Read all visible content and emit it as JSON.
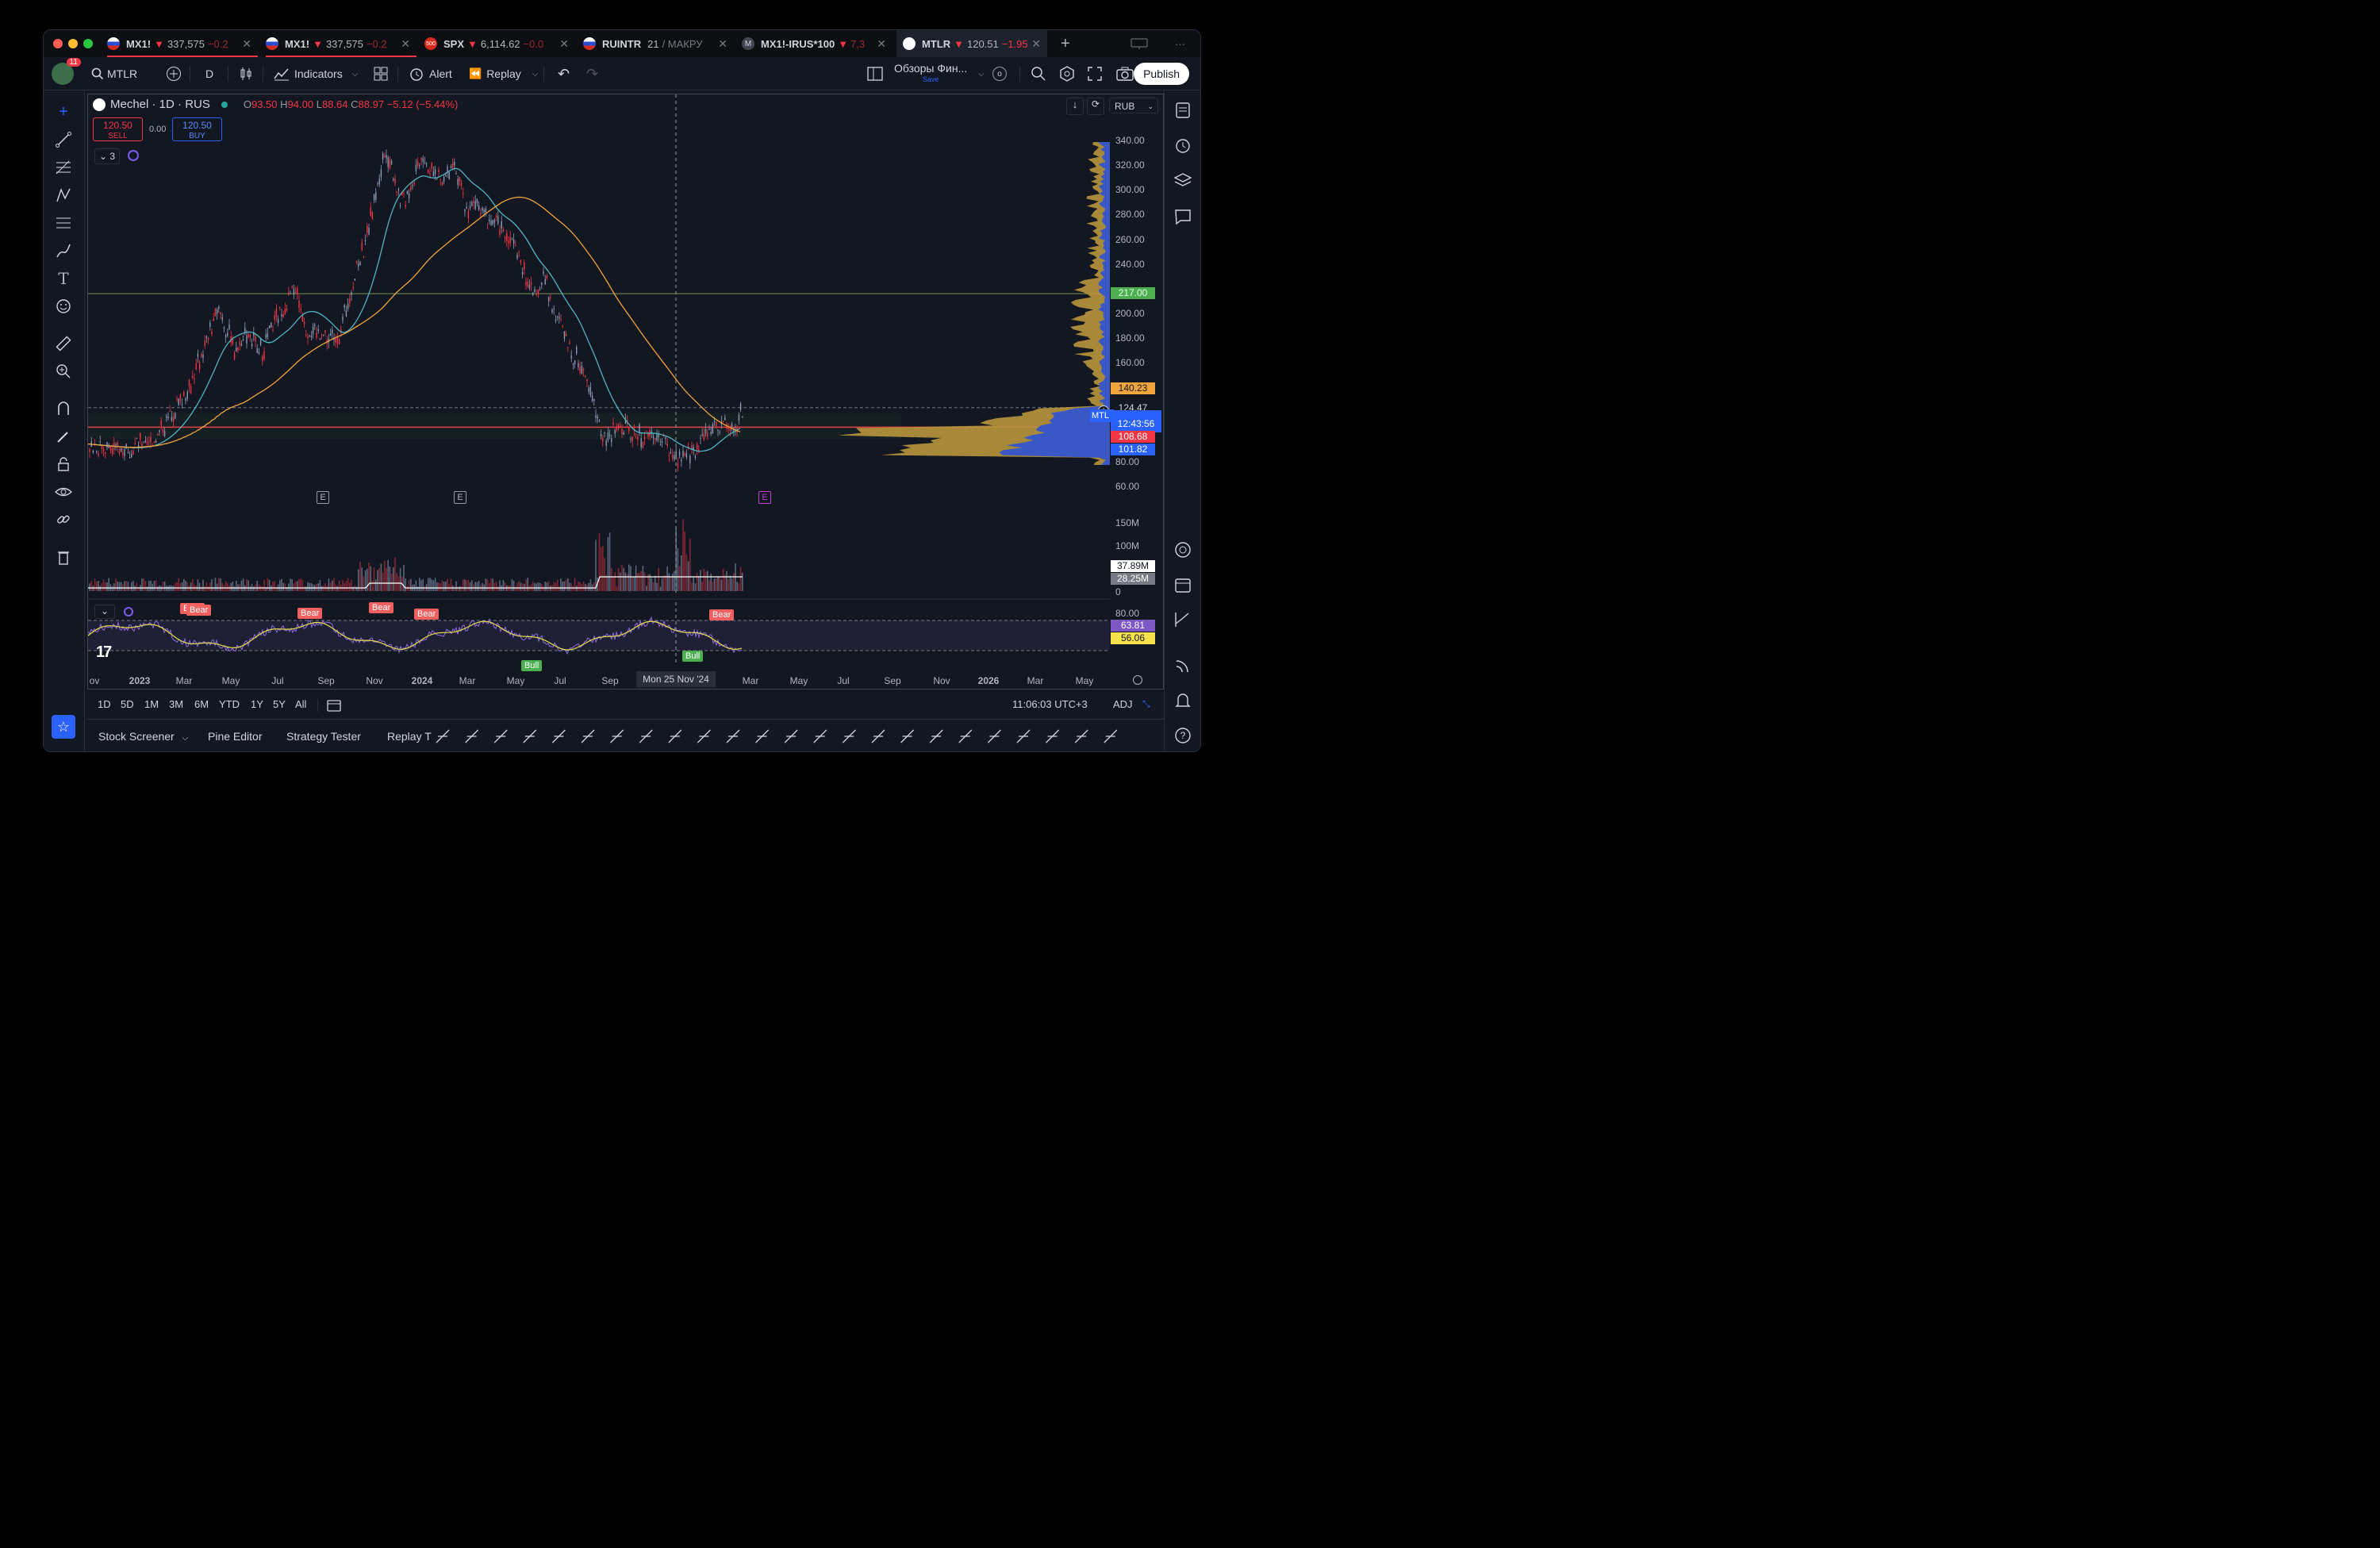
{
  "tabs": [
    {
      "symbol": "MX1!",
      "change_arrow": "▼",
      "price": "337,575",
      "change": "−0.2"
    },
    {
      "symbol": "MX1!",
      "change_arrow": "▼",
      "price": "337,575",
      "change": "−0.2"
    },
    {
      "symbol": "SPX",
      "change_arrow": "▼",
      "price": "6,114.62",
      "change": "−0.0"
    },
    {
      "symbol": "RUINTR",
      "price": "21",
      "extra": "/ МАКРУ"
    },
    {
      "symbol": "MX1!-IRUS*100",
      "change_arrow": "▼",
      "price": "7,3"
    },
    {
      "symbol": "MTLR",
      "change_arrow": "▼",
      "price": "120.51",
      "change": "−1.95"
    }
  ],
  "spx_flag_text": "500",
  "rus_ticker_letter": "M",
  "toolbar": {
    "avatar_badge": "11",
    "symbol": "MTLR",
    "interval": "D",
    "indicators": "Indicators",
    "alert": "Alert",
    "replay": "Replay",
    "layout_name": "Обзоры Фин...",
    "save": "Save",
    "publish": "Publish",
    "extra_o": "o"
  },
  "legend": {
    "title": "Mechel · 1D · RUS",
    "o_label": "O",
    "o": "93.50",
    "h_label": "H",
    "h": "94.00",
    "l_label": "L",
    "l": "88.64",
    "c_label": "C",
    "c": "88.97",
    "change": "−5.12 (−5.44%)",
    "sell_price": "120.50",
    "sell": "SELL",
    "spread": "0.00",
    "buy_price": "120.50",
    "buy": "BUY",
    "indicators_count": "3",
    "currency": "RUB"
  },
  "price_axis": {
    "labels": [
      "340.00",
      "320.00",
      "300.00",
      "280.00",
      "260.00",
      "240.00",
      "200.00",
      "180.00",
      "160.00",
      "80.00",
      "60.00"
    ],
    "pill_217": "217.00",
    "pill_140": "140.23",
    "pill_124": "124.47",
    "pill_timer": "12:43:56",
    "pill_108": "108.68",
    "pill_101": "101.82",
    "symbol_tag": "MTL"
  },
  "volume_axis": {
    "labels": [
      "150M",
      "100M",
      "0"
    ],
    "pill_vol1": "37.89M",
    "pill_vol2": "28.25M"
  },
  "osc_axis": {
    "label_80": "80.00",
    "pill_a": "63.81",
    "pill_b": "56.06"
  },
  "time_axis": {
    "labels": [
      "ov",
      "2023",
      "Mar",
      "May",
      "Jul",
      "Sep",
      "Nov",
      "2024",
      "Mar",
      "May",
      "Jul",
      "Sep",
      "Mar",
      "May",
      "Jul",
      "Sep",
      "Nov",
      "2026",
      "Mar",
      "May"
    ],
    "crosshair_date": "Mon 25 Nov '24"
  },
  "osc_badges": {
    "bear": "Bear",
    "bull": "Bull"
  },
  "earnings_marker": "E",
  "range_buttons": [
    "1D",
    "5D",
    "1M",
    "3M",
    "6M",
    "YTD",
    "1Y",
    "5Y",
    "All"
  ],
  "clock": "11:06:03 UTC+3",
  "adj": "ADJ",
  "bottom_tabs": [
    "Stock Screener",
    "Pine Editor",
    "Strategy Tester",
    "Replay T"
  ],
  "colors": {
    "up": "#8c9bb8",
    "down": "#f23645",
    "sma_teal": "#4fb6c1",
    "sma_orange": "#f0a53c",
    "vp_gold": "#b8963c",
    "vp_blue": "#3355cc",
    "osc_yellow": "#e8e04a",
    "osc_purple": "#8e6cdf"
  },
  "chart_data": {
    "type": "line",
    "title": "Mechel · 1D · RUS",
    "x": [
      "2022-11",
      "2023-01",
      "2023-03",
      "2023-05",
      "2023-07",
      "2023-09",
      "2023-11",
      "2024-01",
      "2024-03",
      "2024-05",
      "2024-07",
      "2024-09",
      "2024-11",
      "2025-01",
      "2025-02"
    ],
    "series": [
      {
        "name": "MTLR",
        "values": [
          92,
          95,
          120,
          205,
          180,
          215,
          325,
          330,
          300,
          270,
          200,
          110,
          80,
          105,
          124
        ]
      }
    ],
    "ylim": [
      60,
      345
    ]
  }
}
